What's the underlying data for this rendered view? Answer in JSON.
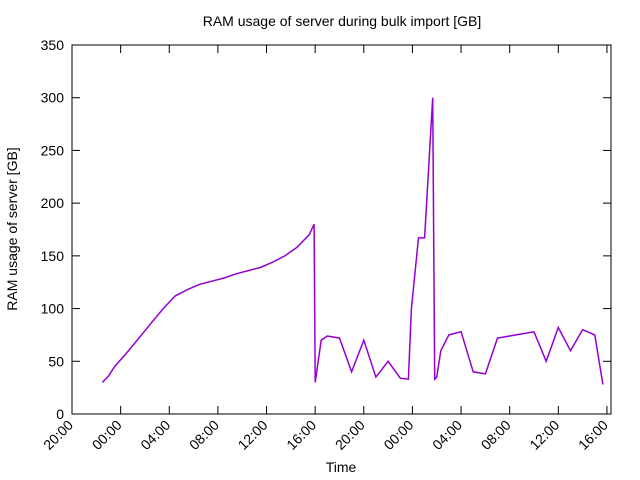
{
  "chart_data": {
    "type": "line",
    "title": "RAM usage of server during bulk import [GB]",
    "xlabel": "Time",
    "ylabel": "RAM usage of server [GB]",
    "ylim": [
      0,
      350
    ],
    "yticks": [
      0,
      50,
      100,
      150,
      200,
      250,
      300,
      350
    ],
    "xlim": [
      "20:00",
      "16:00 (+2 days)"
    ],
    "xticks": [
      "20:00",
      "00:00",
      "04:00",
      "08:00",
      "12:00",
      "16:00",
      "20:00",
      "00:00",
      "04:00",
      "08:00",
      "12:00",
      "16:00"
    ],
    "grid": false,
    "color": "#9400d3",
    "series": [
      {
        "x": [
          "22:30",
          "23:00",
          "23:30",
          "00:30",
          "01:30",
          "02:30",
          "03:30",
          "04:30",
          "05:30",
          "06:30",
          "07:30",
          "08:30",
          "09:30",
          "10:30",
          "11:30",
          "12:30",
          "13:30",
          "14:30",
          "15:30",
          "15:55",
          "16:00",
          "16:30",
          "17:00",
          "18:00",
          "19:00",
          "20:00",
          "21:00",
          "22:00",
          "23:00",
          "23:40",
          "23:55",
          "00:30",
          "01:00",
          "01:40",
          "01:50",
          "02:00",
          "02:20",
          "03:00",
          "04:00",
          "05:00",
          "06:00",
          "07:00",
          "08:00",
          "09:00",
          "10:00",
          "11:00",
          "12:00",
          "13:00",
          "14:00",
          "15:00",
          "15:40"
        ],
        "y": [
          30,
          36,
          45,
          58,
          72,
          86,
          100,
          112,
          118,
          123,
          126,
          129,
          133,
          136,
          139,
          144,
          150,
          158,
          170,
          180,
          30,
          70,
          74,
          72,
          40,
          70,
          35,
          50,
          34,
          33,
          100,
          167,
          167,
          300,
          33,
          35,
          60,
          75,
          78,
          40,
          38,
          72,
          74,
          76,
          78,
          50,
          82,
          60,
          80,
          75,
          28
        ]
      }
    ]
  }
}
